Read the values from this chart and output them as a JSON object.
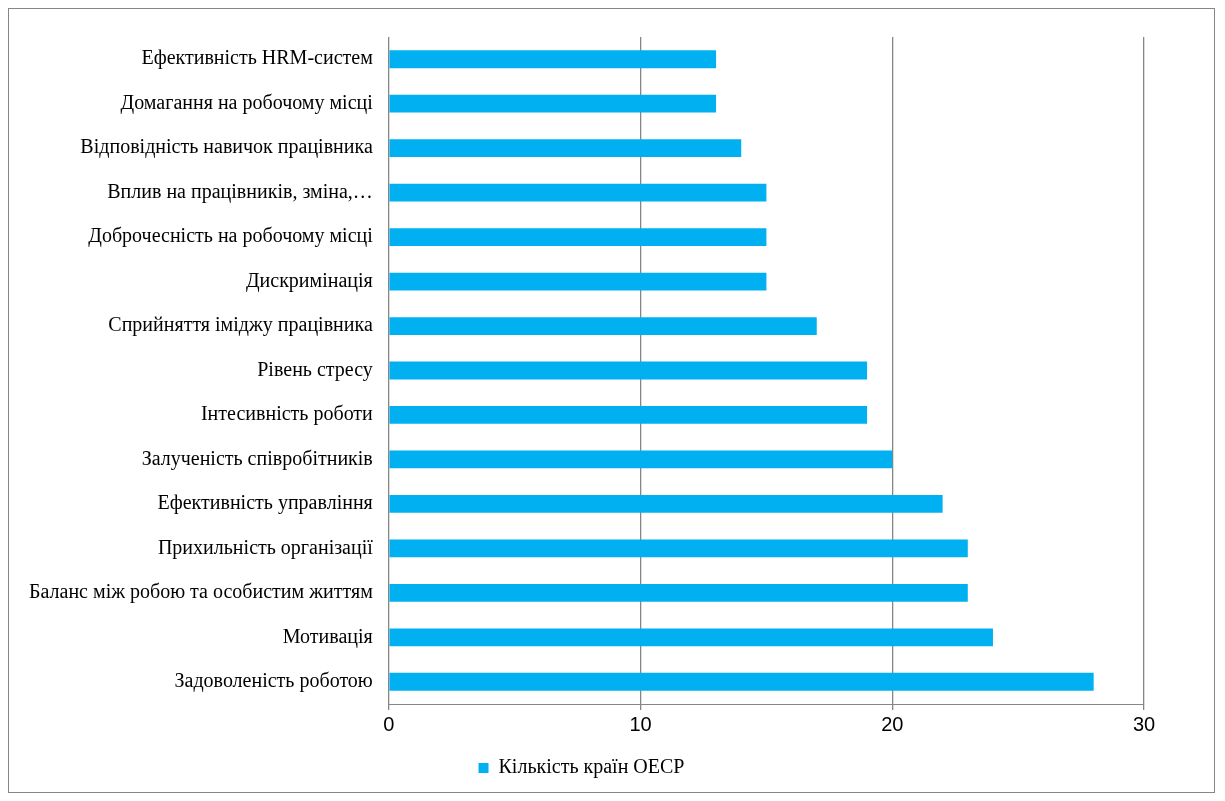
{
  "chart_data": {
    "type": "bar",
    "orientation": "horizontal",
    "categories": [
      "Ефективність HRM-систем",
      "Домагання на робочому місці",
      "Відповідність навичок працівника",
      "Вплив на працівників, зміна,…",
      "Доброчесність на робочому місці",
      "Дискримінація",
      "Сприйняття іміджу працівника",
      "Рівень стресу",
      "Інтесивність роботи",
      "Залученість співробітників",
      "Ефективність управління",
      "Прихильність організації",
      "Баланс між робою та особистим життям",
      "Мотивація",
      "Задоволеність роботою"
    ],
    "series": [
      {
        "name": "Кількість країн ОЕСР",
        "color": "#00b0f0",
        "values": [
          13,
          13,
          14,
          15,
          15,
          15,
          17,
          19,
          19,
          20,
          22,
          23,
          23,
          24,
          28
        ]
      }
    ],
    "xlim": [
      0,
      30
    ],
    "xticks": [
      0,
      10,
      20,
      30
    ],
    "grid": "x",
    "legend": "bottom"
  }
}
